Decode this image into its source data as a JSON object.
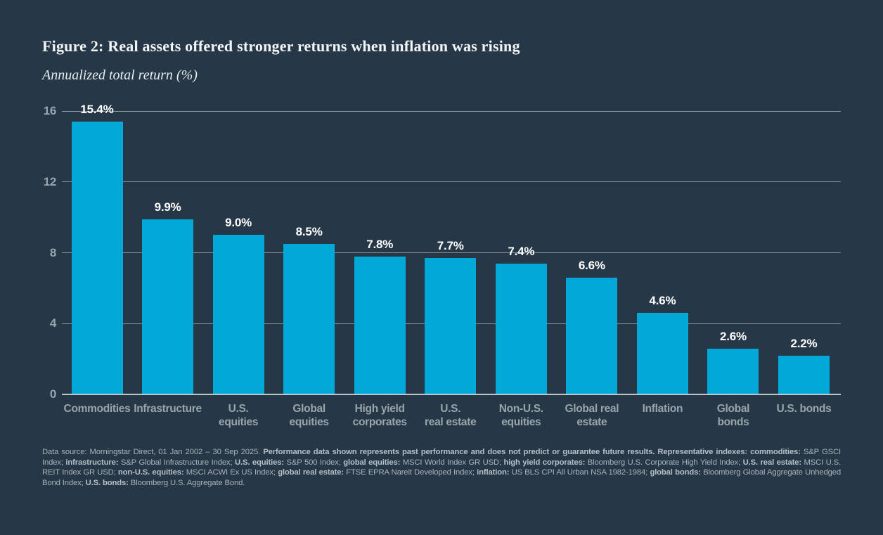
{
  "title": "Figure 2: Real assets offered stronger returns when inflation was rising",
  "subtitle": "Annualized total return (%)",
  "colors": {
    "background": "#263848",
    "bar": "#01a8d8",
    "gridline": "#c4ccd2",
    "value_label": "#ffffff",
    "axis_text": "#9aa4ab",
    "title_text": "#f2f5f6",
    "footer_text": "#a9b2b8"
  },
  "chart_data": {
    "type": "bar",
    "title": "Figure 2: Real assets offered stronger returns when inflation was rising",
    "subtitle": "Annualized total return (%)",
    "categories": [
      "Commodities",
      "Infrastructure",
      "U.S. equities",
      "Global equities",
      "High yield corporates",
      "U.S. real estate",
      "Non-U.S. equities",
      "Global real estate",
      "Inflation",
      "Global bonds",
      "U.S. bonds"
    ],
    "values": [
      15.4,
      9.9,
      9.0,
      8.5,
      7.8,
      7.7,
      7.4,
      6.6,
      4.6,
      2.6,
      2.2
    ],
    "value_labels": [
      "15.4%",
      "9.9%",
      "9.0%",
      "8.5%",
      "7.8%",
      "7.7%",
      "7.4%",
      "6.6%",
      "4.6%",
      "2.6%",
      "2.2%"
    ],
    "category_label_lines": [
      [
        "Commodities"
      ],
      [
        "Infrastructure"
      ],
      [
        "U.S.",
        "equities"
      ],
      [
        "Global",
        "equities"
      ],
      [
        "High yield",
        "corporates"
      ],
      [
        "U.S.",
        "real estate"
      ],
      [
        "Non-U.S.",
        "equities"
      ],
      [
        "Global real",
        "estate"
      ],
      [
        "Inflation"
      ],
      [
        "Global",
        "bonds"
      ],
      [
        "U.S. bonds"
      ]
    ],
    "xlabel": "",
    "ylabel": "Annualized total return (%)",
    "yticks": [
      0,
      4,
      8,
      12,
      16
    ],
    "ylim": [
      0,
      16
    ],
    "grid": true,
    "legend": "none",
    "bar_color": "#01a8d8"
  },
  "footer": {
    "segments": [
      {
        "text": "Data source: Morningstar Direct, 01 Jan 2002 – 30 Sep 2025. ",
        "bold": false
      },
      {
        "text": "Performance data shown represents past performance and does not predict or guarantee future results. Representative indexes: commodities:",
        "bold": true
      },
      {
        "text": " S&P GSCI Index; ",
        "bold": false
      },
      {
        "text": "infrastructure:",
        "bold": true
      },
      {
        "text": " S&P Global Infrastructure Index; ",
        "bold": false
      },
      {
        "text": "U.S. equities:",
        "bold": true
      },
      {
        "text": " S&P 500 Index; ",
        "bold": false
      },
      {
        "text": "global equities:",
        "bold": true
      },
      {
        "text": " MSCI World Index GR USD; ",
        "bold": false
      },
      {
        "text": "high yield corporates:",
        "bold": true
      },
      {
        "text": " Bloomberg U.S. Corporate High Yield Index; ",
        "bold": false
      },
      {
        "text": "U.S. real estate:",
        "bold": true
      },
      {
        "text": " MSCI U.S. REIT Index GR USD; ",
        "bold": false
      },
      {
        "text": "non-U.S. equities:",
        "bold": true
      },
      {
        "text": " MSCI ACWI Ex US Index; ",
        "bold": false
      },
      {
        "text": "global real estate:",
        "bold": true
      },
      {
        "text": " FTSE EPRA Nareit Developed Index; ",
        "bold": false
      },
      {
        "text": "inflation:",
        "bold": true
      },
      {
        "text": " US BLS CPI All Urban NSA 1982-1984; ",
        "bold": false
      },
      {
        "text": "global bonds:",
        "bold": true
      },
      {
        "text": " Bloomberg Global Aggregate Unhedged Bond Index; ",
        "bold": false
      },
      {
        "text": "U.S. bonds:",
        "bold": true
      },
      {
        "text": " Bloomberg U.S. Aggregate Bond.",
        "bold": false
      }
    ]
  }
}
